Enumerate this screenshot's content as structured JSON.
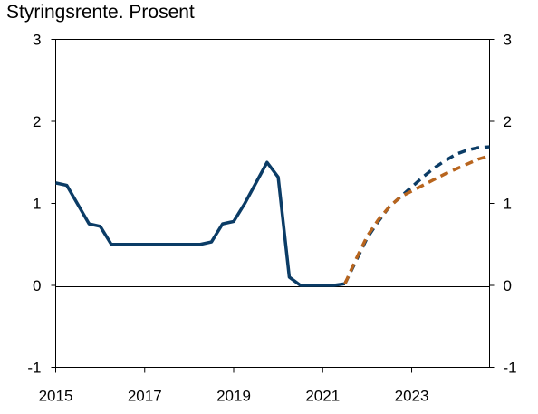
{
  "chart_data": {
    "type": "line",
    "title": "Styringsrente. Prosent",
    "xlabel": "",
    "ylabel": "",
    "xlim": [
      2015.0,
      2024.75
    ],
    "ylim": [
      -1,
      3
    ],
    "grid": false,
    "legend": "none",
    "x_ticks": [
      "2015",
      "2017",
      "2019",
      "2021",
      "2023"
    ],
    "x_tick_values": [
      2015,
      2017,
      2019,
      2021,
      2023
    ],
    "y_ticks_left": [
      "-1",
      "0",
      "1",
      "2",
      "3"
    ],
    "y_ticks_right": [
      "-1",
      "0",
      "1",
      "2",
      "3"
    ],
    "y_tick_values": [
      -1,
      0,
      1,
      2,
      3
    ],
    "series": [
      {
        "style": "solid",
        "color": "#0b3c66",
        "points": [
          [
            2015.0,
            1.25
          ],
          [
            2015.25,
            1.22
          ],
          [
            2015.75,
            0.75
          ],
          [
            2016.0,
            0.72
          ],
          [
            2016.25,
            0.5
          ],
          [
            2017.0,
            0.5
          ],
          [
            2018.0,
            0.5
          ],
          [
            2018.25,
            0.5
          ],
          [
            2018.5,
            0.53
          ],
          [
            2018.75,
            0.75
          ],
          [
            2019.0,
            0.78
          ],
          [
            2019.25,
            1.0
          ],
          [
            2019.5,
            1.25
          ],
          [
            2019.75,
            1.5
          ],
          [
            2020.0,
            1.32
          ],
          [
            2020.25,
            0.1
          ],
          [
            2020.5,
            0.0
          ],
          [
            2021.0,
            0.0
          ],
          [
            2021.25,
            0.0
          ],
          [
            2021.5,
            0.02
          ]
        ]
      },
      {
        "style": "dashed",
        "color": "#0b3c66",
        "points": [
          [
            2021.5,
            0.02
          ],
          [
            2021.75,
            0.3
          ],
          [
            2022.0,
            0.58
          ],
          [
            2022.25,
            0.78
          ],
          [
            2022.5,
            0.96
          ],
          [
            2022.75,
            1.08
          ],
          [
            2023.0,
            1.2
          ],
          [
            2023.25,
            1.32
          ],
          [
            2023.5,
            1.43
          ],
          [
            2023.75,
            1.52
          ],
          [
            2024.0,
            1.6
          ],
          [
            2024.25,
            1.65
          ],
          [
            2024.5,
            1.68
          ],
          [
            2024.75,
            1.69
          ]
        ]
      },
      {
        "style": "dashed",
        "color": "#b8651e",
        "points": [
          [
            2021.5,
            0.02
          ],
          [
            2021.75,
            0.32
          ],
          [
            2022.0,
            0.6
          ],
          [
            2022.25,
            0.8
          ],
          [
            2022.5,
            0.96
          ],
          [
            2022.75,
            1.08
          ],
          [
            2023.0,
            1.15
          ],
          [
            2023.25,
            1.22
          ],
          [
            2023.5,
            1.29
          ],
          [
            2023.75,
            1.36
          ],
          [
            2024.0,
            1.42
          ],
          [
            2024.25,
            1.48
          ],
          [
            2024.5,
            1.54
          ],
          [
            2024.75,
            1.58
          ]
        ]
      }
    ]
  }
}
